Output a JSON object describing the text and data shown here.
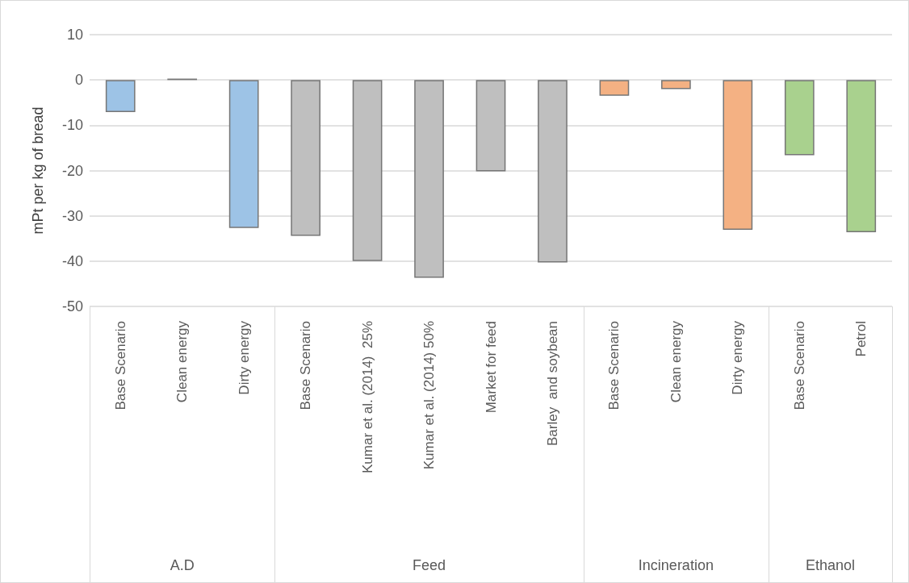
{
  "chart_data": {
    "type": "bar",
    "ylabel": "mPt per kg of bread",
    "categories": [
      "Base Scenario",
      "Clean energy",
      "Dirty energy",
      "Base Scenario",
      "Kumar et al. (2014)  25%",
      "Kumar et al. (2014) 50%",
      "Market for feed",
      "Barley  and soybean",
      "Base Scenario",
      "Clean energy",
      "Dirty energy",
      "Base Scenario",
      "Petrol"
    ],
    "values": [
      -7.1,
      0.3,
      -32.7,
      -34.4,
      -40,
      -43.7,
      -20.2,
      -40.3,
      -3.5,
      -2.0,
      -33.1,
      -16.6,
      -33.6
    ],
    "colors": [
      "#9dc3e6",
      "#9dc3e6",
      "#9dc3e6",
      "#bfbfbf",
      "#bfbfbf",
      "#bfbfbf",
      "#bfbfbf",
      "#bfbfbf",
      "#f4b183",
      "#f4b183",
      "#f4b183",
      "#a9d18e",
      "#a9d18e"
    ],
    "annotations": [
      "A.D",
      "Feed",
      "Incineration",
      "Ethanol"
    ],
    "ylim": [
      -50,
      10
    ],
    "yticks": [
      -50,
      -40,
      -30,
      -20,
      -10,
      0,
      10
    ],
    "grid": "y"
  }
}
